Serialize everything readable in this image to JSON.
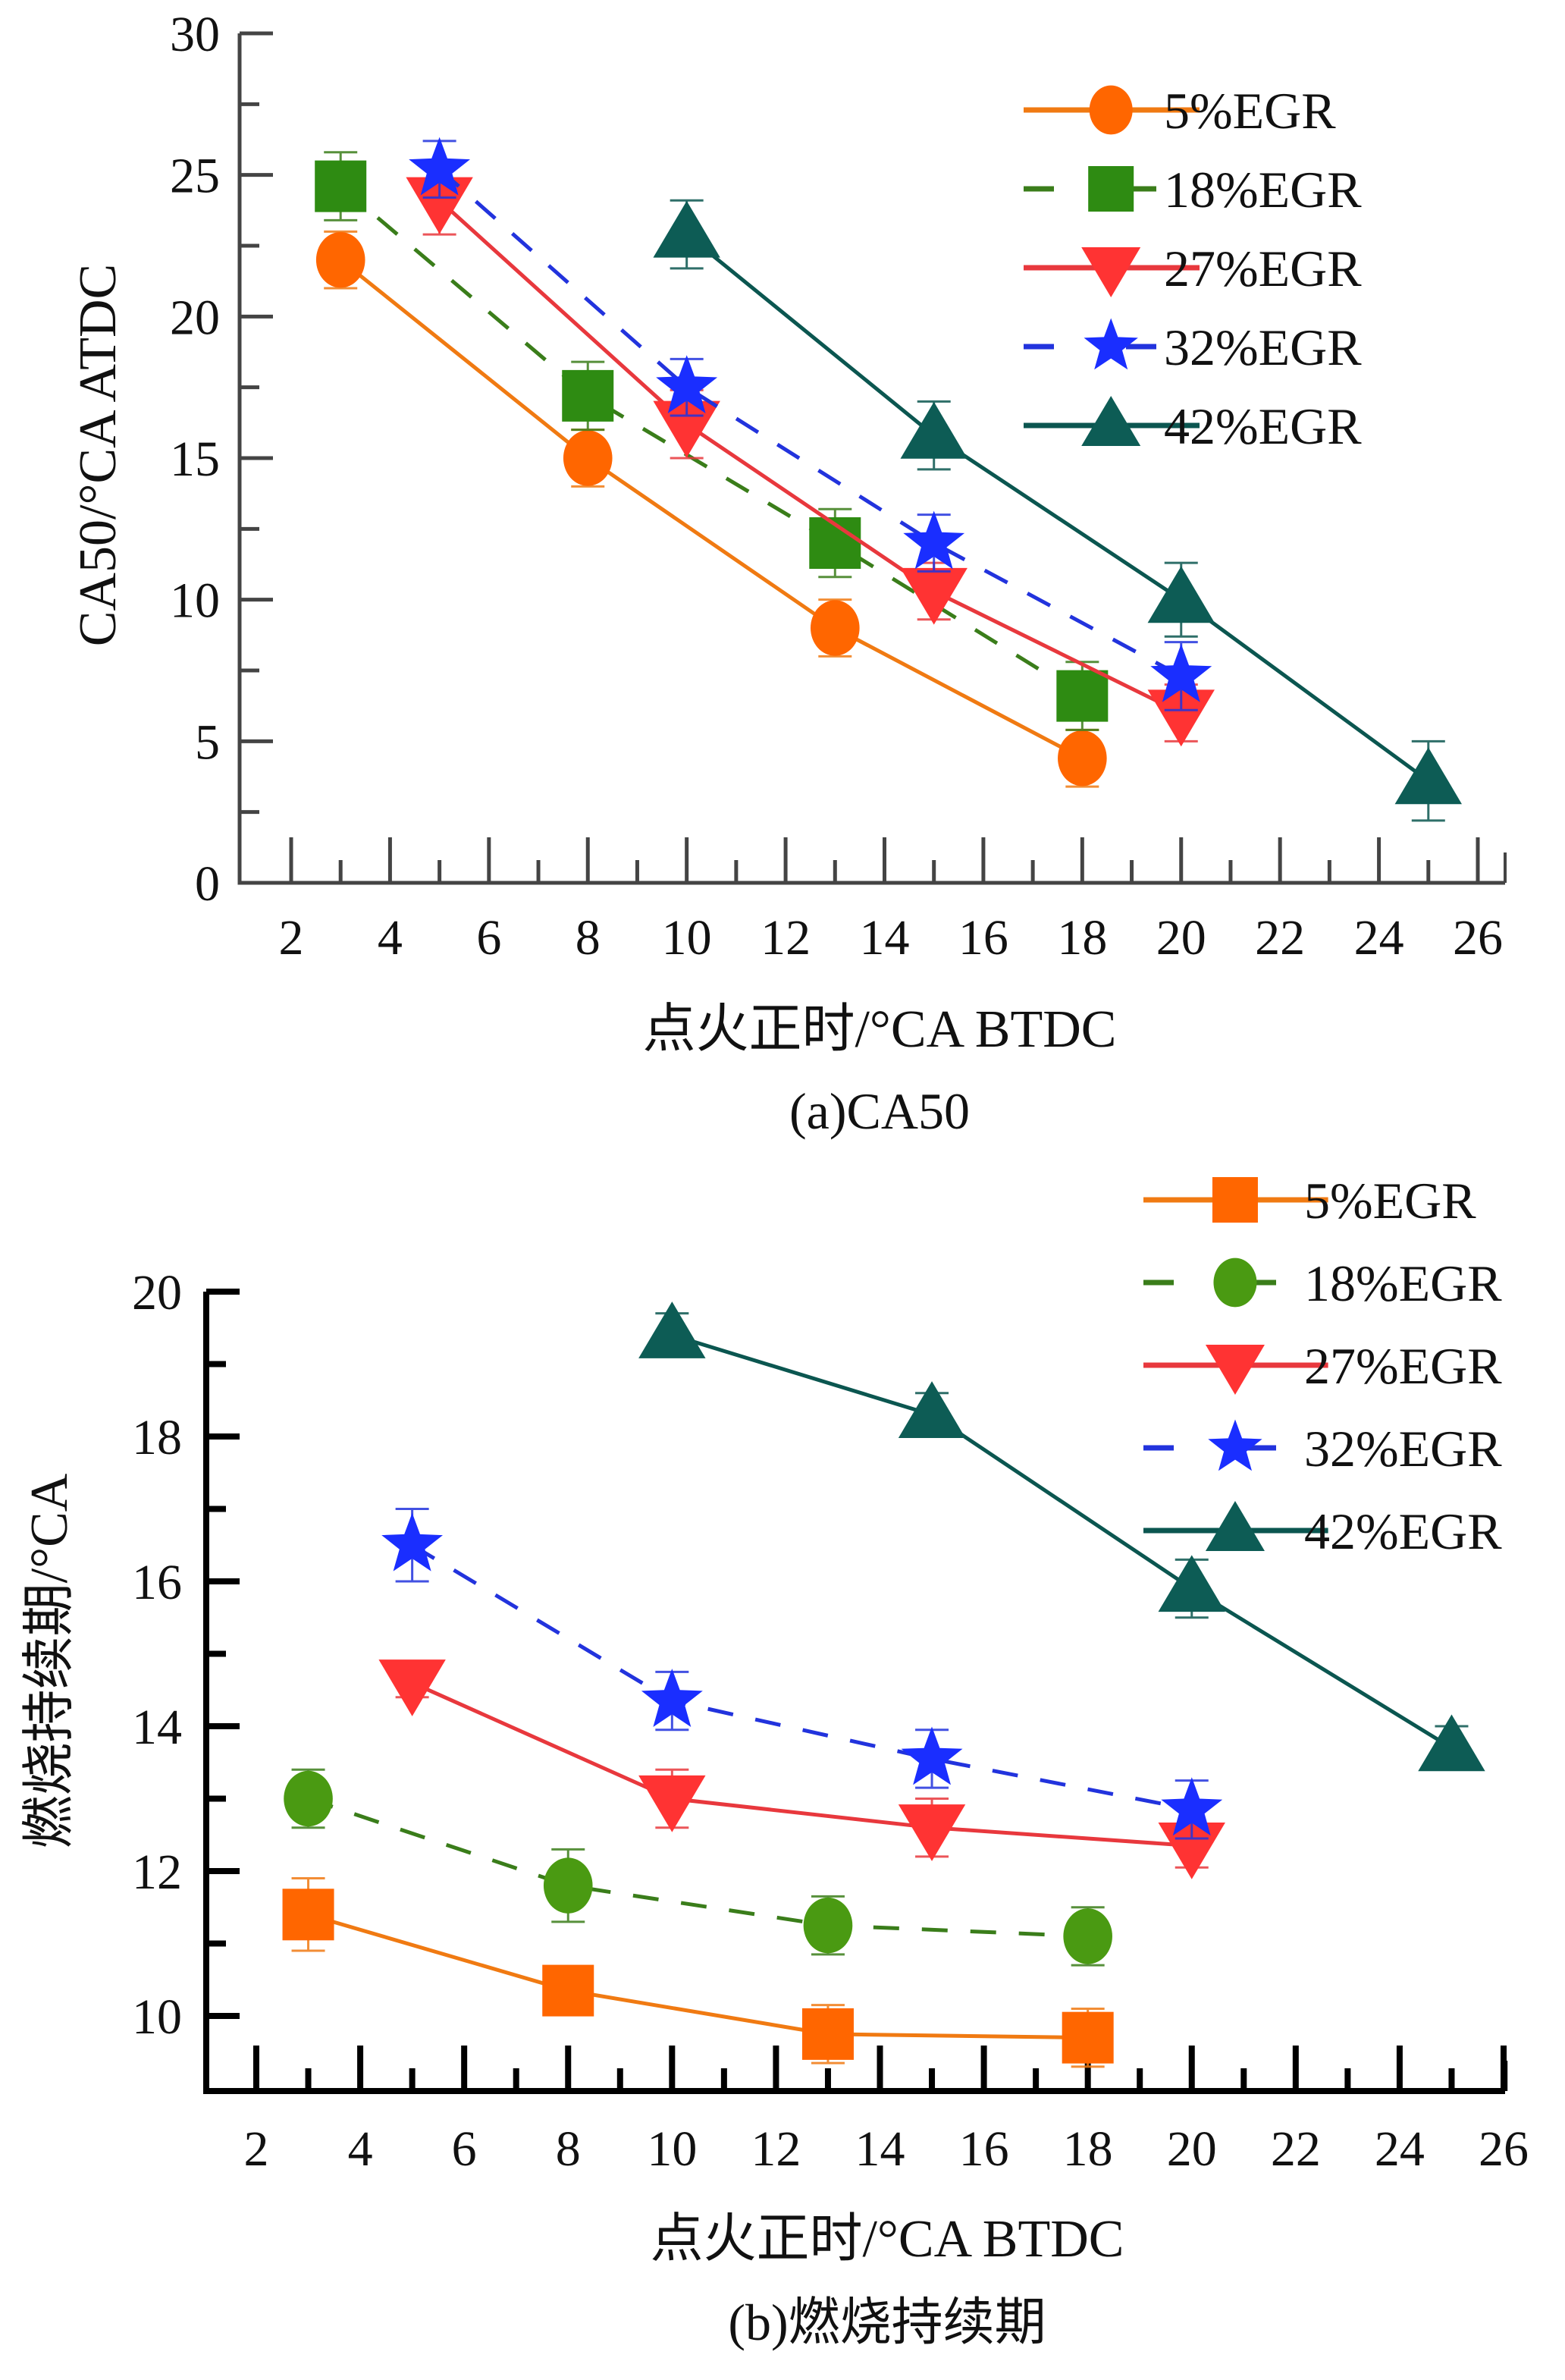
{
  "chart_data": [
    {
      "type": "line",
      "panel": "a",
      "title": "(a)CA50",
      "xlabel": "点火正时/°CA BTDC",
      "ylabel": "CA50/°CA ATDC",
      "xlim": [
        1,
        27
      ],
      "ylim": [
        0,
        30
      ],
      "xticks": [
        2,
        4,
        6,
        8,
        10,
        12,
        14,
        16,
        18,
        20,
        22,
        24,
        26
      ],
      "yticks": [
        0,
        5,
        10,
        15,
        20,
        25,
        30
      ],
      "grid": false,
      "legend_position": "top-right",
      "series": [
        {
          "name": "5%EGR",
          "color": "#ff6600",
          "line_color": "#f07a12",
          "marker": "circle",
          "dash": "solid",
          "x": [
            3,
            8,
            13,
            18
          ],
          "y": [
            22.0,
            15.0,
            9.0,
            4.4
          ],
          "error": [
            1.0,
            1.0,
            1.0,
            1.0
          ]
        },
        {
          "name": "18%EGR",
          "color": "#2e8b12",
          "line_color": "#3a7d1a",
          "marker": "square",
          "dash": "dashed",
          "x": [
            3,
            8,
            13,
            18
          ],
          "y": [
            24.6,
            17.2,
            12.0,
            6.6
          ],
          "error": [
            1.2,
            1.2,
            1.2,
            1.2
          ]
        },
        {
          "name": "27%EGR",
          "color": "#ff3333",
          "line_color": "#e8383d",
          "marker": "triangle-down",
          "dash": "solid",
          "x": [
            5,
            10,
            15,
            20
          ],
          "y": [
            24.1,
            16.2,
            10.3,
            6.0
          ],
          "error": [
            1.2,
            1.2,
            1.0,
            1.0
          ]
        },
        {
          "name": "32%EGR",
          "color": "#1a2eff",
          "line_color": "#2233dd",
          "marker": "star",
          "dash": "dashed",
          "x": [
            5,
            10,
            15,
            20
          ],
          "y": [
            25.2,
            17.5,
            12.0,
            7.3
          ],
          "error": [
            1.0,
            1.0,
            1.0,
            1.2
          ]
        },
        {
          "name": "42%EGR",
          "color": "#0d5c55",
          "line_color": "#0b5650",
          "marker": "triangle-up",
          "dash": "solid",
          "x": [
            10,
            15,
            20,
            25
          ],
          "y": [
            22.9,
            15.8,
            10.0,
            3.6
          ],
          "error": [
            1.2,
            1.2,
            1.3,
            1.4
          ]
        }
      ]
    },
    {
      "type": "line",
      "panel": "b",
      "title": "(b)燃烧持续期",
      "xlabel": "点火正时/°CA BTDC",
      "ylabel": "燃烧持续期/°CA",
      "xlim": [
        1,
        27
      ],
      "ylim": [
        9,
        20.5
      ],
      "xticks": [
        2,
        4,
        6,
        8,
        10,
        12,
        14,
        16,
        18,
        20,
        22,
        24,
        26
      ],
      "yticks": [
        10,
        12,
        14,
        16,
        18,
        20
      ],
      "grid": false,
      "legend_position": "top-right",
      "series": [
        {
          "name": "5%EGR",
          "color": "#ff6600",
          "line_color": "#f07a12",
          "marker": "square",
          "dash": "solid",
          "x": [
            3,
            8,
            13,
            18
          ],
          "y": [
            11.4,
            10.35,
            9.75,
            9.7
          ],
          "error": [
            0.5,
            0.3,
            0.4,
            0.4
          ]
        },
        {
          "name": "18%EGR",
          "color": "#4a9a12",
          "line_color": "#3a7d1a",
          "marker": "circle",
          "dash": "dashed",
          "x": [
            3,
            8,
            13,
            18
          ],
          "y": [
            13.0,
            11.8,
            11.25,
            11.1
          ],
          "error": [
            0.4,
            0.5,
            0.4,
            0.4
          ]
        },
        {
          "name": "27%EGR",
          "color": "#ff3333",
          "line_color": "#e8383d",
          "marker": "triangle-down",
          "dash": "solid",
          "x": [
            5,
            10,
            15,
            20
          ],
          "y": [
            14.6,
            13.0,
            12.6,
            12.35
          ],
          "error": [
            0.2,
            0.4,
            0.4,
            0.3
          ]
        },
        {
          "name": "32%EGR",
          "color": "#1a2eff",
          "line_color": "#2233dd",
          "marker": "star",
          "dash": "dashed",
          "x": [
            5,
            10,
            15,
            20
          ],
          "y": [
            16.5,
            14.35,
            13.55,
            12.85
          ],
          "error": [
            0.5,
            0.4,
            0.4,
            0.4
          ]
        },
        {
          "name": "42%EGR",
          "color": "#0d5c55",
          "line_color": "#0b5650",
          "marker": "triangle-up",
          "dash": "solid",
          "x": [
            10,
            15,
            20,
            25
          ],
          "y": [
            19.4,
            18.3,
            15.9,
            13.7
          ],
          "error": [
            0.3,
            0.3,
            0.4,
            0.3
          ]
        }
      ]
    }
  ]
}
